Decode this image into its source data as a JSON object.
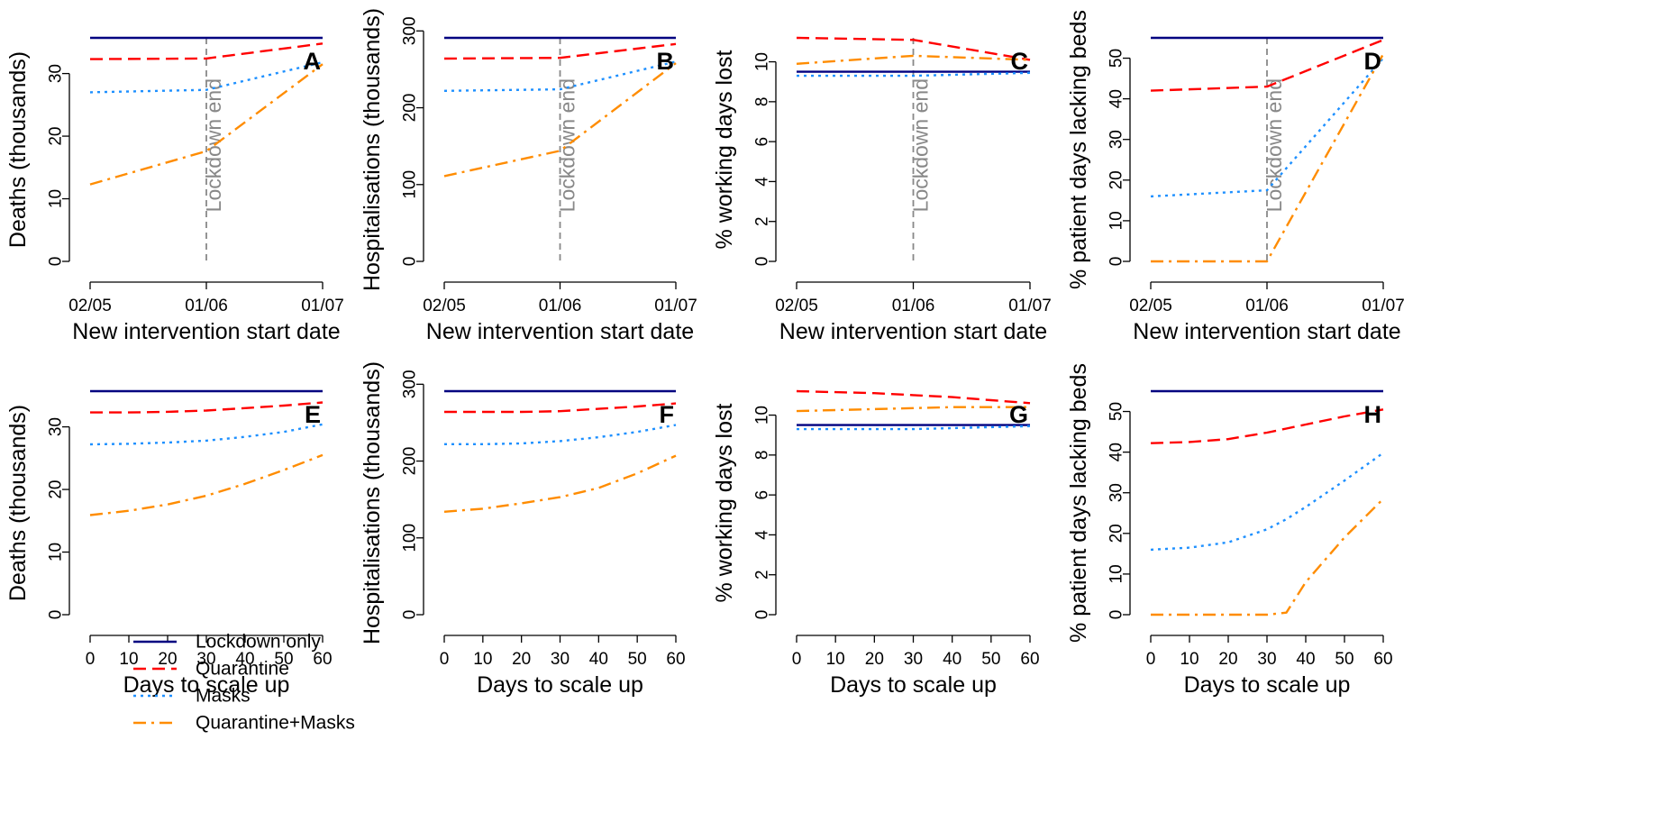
{
  "colors": {
    "Lockdown only": "#000080",
    "Quarantine": "#ff0000",
    "Masks": "#1e90ff",
    "Quarantine+Masks": "#ff8c00",
    "vline": "#888888"
  },
  "legend": {
    "items": [
      {
        "name": "Lockdown only",
        "dash": "solid"
      },
      {
        "name": "Quarantine",
        "dash": "dashed"
      },
      {
        "name": "Masks",
        "dash": "dotted"
      },
      {
        "name": "Quarantine+Masks",
        "dash": "dashdot"
      }
    ]
  },
  "chart_data": [
    {
      "type": "line",
      "panel": "A",
      "xlabel": "New intervention start date",
      "ylabel": "Deaths (thousands)",
      "x_axis": "date",
      "x": [
        "02/05",
        "01/06",
        "01/07"
      ],
      "xticks": [
        "02/05",
        "01/06",
        "01/07"
      ],
      "ylim": [
        0,
        35.7
      ],
      "yticks": [
        0,
        10,
        20,
        30
      ],
      "vline": {
        "x": "01/06",
        "label": "Lockdown end"
      },
      "series": [
        {
          "name": "Lockdown only",
          "values": [
            35.7,
            35.7,
            35.7
          ]
        },
        {
          "name": "Quarantine",
          "values": [
            32.3,
            32.4,
            34.8
          ]
        },
        {
          "name": "Masks",
          "values": [
            27.0,
            27.4,
            31.8
          ]
        },
        {
          "name": "Quarantine+Masks",
          "values": [
            12.3,
            17.6,
            31.5
          ]
        }
      ]
    },
    {
      "type": "line",
      "panel": "B",
      "xlabel": "New intervention start date",
      "ylabel": "Hospitalisations (thousands)",
      "x_axis": "date",
      "x": [
        "02/05",
        "01/06",
        "01/07"
      ],
      "xticks": [
        "02/05",
        "01/06",
        "01/07"
      ],
      "ylim": [
        0,
        291
      ],
      "yticks": [
        0,
        100,
        200,
        300
      ],
      "vline": {
        "x": "01/06",
        "label": "Lockdown end"
      },
      "series": [
        {
          "name": "Lockdown only",
          "values": [
            291,
            291,
            291
          ]
        },
        {
          "name": "Quarantine",
          "values": [
            264,
            265,
            283
          ]
        },
        {
          "name": "Masks",
          "values": [
            222,
            224,
            260
          ]
        },
        {
          "name": "Quarantine+Masks",
          "values": [
            111,
            144,
            258
          ]
        }
      ]
    },
    {
      "type": "line",
      "panel": "C",
      "xlabel": "New intervention start date",
      "ylabel": "% working days lost",
      "x_axis": "date",
      "x": [
        "02/05",
        "01/06",
        "01/07"
      ],
      "xticks": [
        "02/05",
        "01/06",
        "01/07"
      ],
      "ylim": [
        0,
        11.2
      ],
      "yticks": [
        0,
        2,
        4,
        6,
        8,
        10
      ],
      "vline": {
        "x": "01/06",
        "label": "Lockdown end"
      },
      "series": [
        {
          "name": "Lockdown only",
          "values": [
            9.5,
            9.5,
            9.5
          ]
        },
        {
          "name": "Quarantine",
          "values": [
            11.2,
            11.1,
            10.1
          ]
        },
        {
          "name": "Masks",
          "values": [
            9.3,
            9.3,
            9.45
          ]
        },
        {
          "name": "Quarantine+Masks",
          "values": [
            9.9,
            10.3,
            10.1
          ]
        }
      ]
    },
    {
      "type": "line",
      "panel": "D",
      "xlabel": "New intervention start date",
      "ylabel": "% patient days lacking beds",
      "x_axis": "date",
      "x": [
        "02/05",
        "01/06",
        "01/07"
      ],
      "xticks": [
        "02/05",
        "01/06",
        "01/07"
      ],
      "ylim": [
        0,
        55
      ],
      "yticks": [
        0,
        10,
        20,
        30,
        40,
        50
      ],
      "vline": {
        "x": "01/06",
        "label": "Lockdown end"
      },
      "series": [
        {
          "name": "Lockdown only",
          "values": [
            55,
            55,
            55
          ]
        },
        {
          "name": "Quarantine",
          "values": [
            42,
            43,
            54.5
          ]
        },
        {
          "name": "Masks",
          "values": [
            16,
            17.5,
            50
          ]
        },
        {
          "name": "Quarantine+Masks",
          "values": [
            0,
            0,
            51
          ]
        }
      ]
    },
    {
      "type": "line",
      "panel": "E",
      "xlabel": "Days to scale up",
      "ylabel": "Deaths (thousands)",
      "x_axis": "linear",
      "x": [
        0,
        10,
        20,
        30,
        40,
        50,
        60
      ],
      "xticks": [
        0,
        10,
        20,
        30,
        40,
        50,
        60
      ],
      "ylim": [
        0,
        35.7
      ],
      "yticks": [
        0,
        10,
        20,
        30
      ],
      "series": [
        {
          "name": "Lockdown only",
          "values": [
            35.7,
            35.7,
            35.7,
            35.7,
            35.7,
            35.7,
            35.7
          ]
        },
        {
          "name": "Quarantine",
          "values": [
            32.3,
            32.3,
            32.4,
            32.6,
            33.0,
            33.4,
            33.9
          ]
        },
        {
          "name": "Masks",
          "values": [
            27.2,
            27.3,
            27.5,
            27.8,
            28.4,
            29.2,
            30.4
          ]
        },
        {
          "name": "Quarantine+Masks",
          "values": [
            15.9,
            16.6,
            17.6,
            19.0,
            20.9,
            23.1,
            25.5
          ]
        }
      ]
    },
    {
      "type": "line",
      "panel": "F",
      "xlabel": "Days to scale up",
      "ylabel": "Hospitalisations (thousands)",
      "x_axis": "linear",
      "x": [
        0,
        10,
        20,
        30,
        40,
        50,
        60
      ],
      "xticks": [
        0,
        10,
        20,
        30,
        40,
        50,
        60
      ],
      "ylim": [
        0,
        291
      ],
      "yticks": [
        0,
        100,
        200,
        300
      ],
      "series": [
        {
          "name": "Lockdown only",
          "values": [
            291,
            291,
            291,
            291,
            291,
            291,
            291
          ]
        },
        {
          "name": "Quarantine",
          "values": [
            264,
            264,
            264,
            265,
            268,
            271,
            275
          ]
        },
        {
          "name": "Masks",
          "values": [
            222,
            222,
            223,
            226,
            231,
            238,
            247
          ]
        },
        {
          "name": "Quarantine+Masks",
          "values": [
            134,
            138,
            145,
            153,
            165,
            184,
            207
          ]
        }
      ]
    },
    {
      "type": "line",
      "panel": "G",
      "xlabel": "Days to scale up",
      "ylabel": "% working days lost",
      "x_axis": "linear",
      "x": [
        0,
        10,
        20,
        30,
        40,
        50,
        60
      ],
      "xticks": [
        0,
        10,
        20,
        30,
        40,
        50,
        60
      ],
      "ylim": [
        0,
        11.2
      ],
      "yticks": [
        0,
        2,
        4,
        6,
        8,
        10
      ],
      "series": [
        {
          "name": "Lockdown only",
          "values": [
            9.5,
            9.5,
            9.5,
            9.5,
            9.5,
            9.5,
            9.5
          ]
        },
        {
          "name": "Quarantine",
          "values": [
            11.2,
            11.15,
            11.1,
            11.0,
            10.9,
            10.75,
            10.6
          ]
        },
        {
          "name": "Masks",
          "values": [
            9.3,
            9.3,
            9.3,
            9.3,
            9.35,
            9.4,
            9.45
          ]
        },
        {
          "name": "Quarantine+Masks",
          "values": [
            10.2,
            10.25,
            10.3,
            10.35,
            10.4,
            10.4,
            10.4
          ]
        }
      ]
    },
    {
      "type": "line",
      "panel": "H",
      "xlabel": "Days to scale up",
      "ylabel": "% patient days lacking beds",
      "x_axis": "linear",
      "x": [
        0,
        10,
        20,
        30,
        35,
        40,
        50,
        60
      ],
      "xticks": [
        0,
        10,
        20,
        30,
        40,
        50,
        60
      ],
      "ylim": [
        0,
        55
      ],
      "yticks": [
        0,
        10,
        20,
        30,
        40,
        50
      ],
      "series": [
        {
          "name": "Lockdown only",
          "values": [
            55,
            55,
            55,
            55,
            55,
            55,
            55,
            55
          ]
        },
        {
          "name": "Quarantine",
          "values": [
            42.2,
            42.5,
            43.2,
            44.8,
            45.8,
            46.8,
            48.8,
            50.5
          ]
        },
        {
          "name": "Masks",
          "values": [
            16,
            16.5,
            17.8,
            21,
            23.5,
            26.5,
            33,
            39.8
          ]
        },
        {
          "name": "Quarantine+Masks",
          "values": [
            0,
            0,
            0,
            0,
            0.5,
            8,
            19,
            28.5
          ]
        }
      ]
    }
  ]
}
